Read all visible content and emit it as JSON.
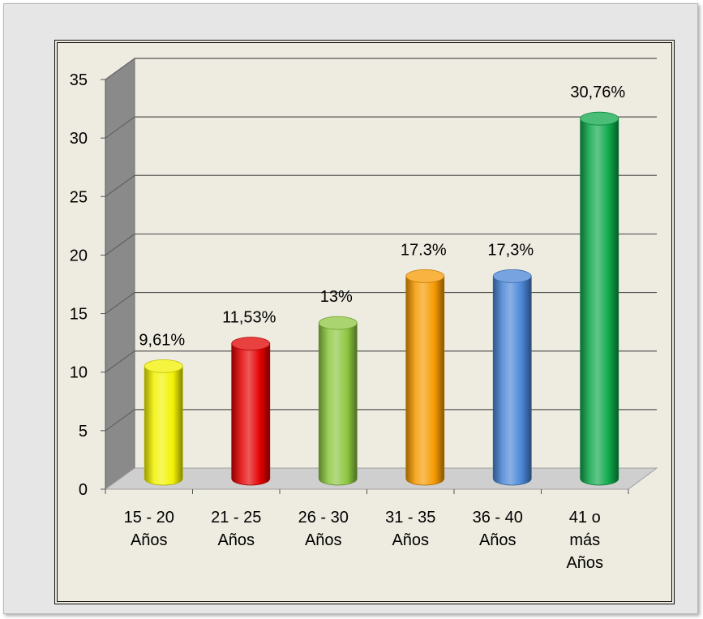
{
  "chart_data": {
    "type": "bar",
    "categories": [
      [
        "15 - 20",
        "Años"
      ],
      [
        "21 - 25",
        "Años"
      ],
      [
        "26 - 30",
        "Años"
      ],
      [
        "31 - 35",
        "Años"
      ],
      [
        "36 - 40",
        "Años"
      ],
      [
        "41 o",
        "más",
        "Años"
      ]
    ],
    "values": [
      9.61,
      11.53,
      13.3,
      17.3,
      17.3,
      30.76
    ],
    "data_labels": [
      "9,61%",
      "11,53%",
      "13%",
      "17.3%",
      "17,3%",
      "30,76%"
    ],
    "bar_colors": [
      "#f2f200",
      "#e20000",
      "#8cc63f",
      "#f59a00",
      "#4a86d6",
      "#0ea84a"
    ],
    "yticks": [
      "0",
      "5",
      "10",
      "15",
      "20",
      "25",
      "30",
      "35"
    ],
    "ylim": [
      0,
      35
    ],
    "grid": true,
    "style": "3d-cylinder",
    "legend": "none"
  }
}
